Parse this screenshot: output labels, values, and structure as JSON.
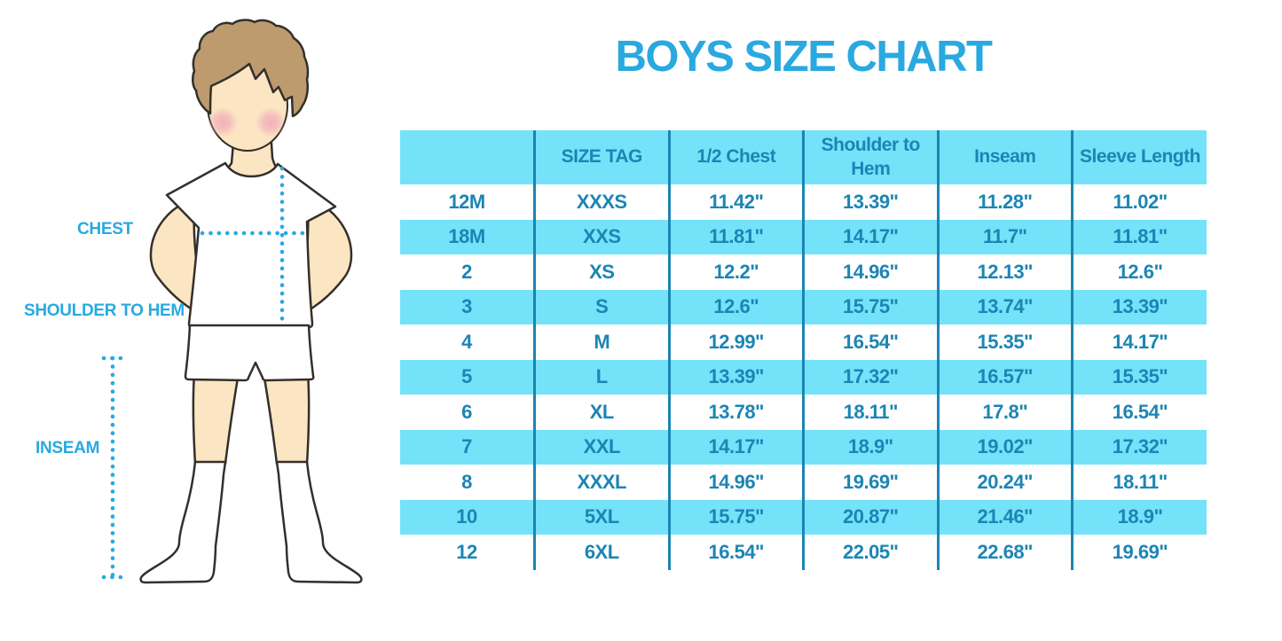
{
  "title": "BOYS SIZE CHART",
  "colors": {
    "accent_blue": "#29a9e0",
    "table_text_blue": "#1c85b4",
    "stripe_cyan": "#74e2f9",
    "divider_blue": "#1b85b2",
    "hair_brown": "#bd9b6e",
    "skin": "#fce5c2",
    "cheek_pink": "#f0a9b9",
    "outline_dark": "#33302b"
  },
  "figure": {
    "description": "outline illustration of a boy in white t-shirt, shorts and socks with dotted measurement lines",
    "labels": [
      {
        "id": "chest",
        "text": "CHEST"
      },
      {
        "id": "shoulder_to_hem",
        "text": "SHOULDER TO HEM"
      },
      {
        "id": "inseam",
        "text": "INSEAM"
      }
    ]
  },
  "chart_data": {
    "type": "table",
    "title": "BOYS SIZE CHART",
    "columns": [
      "",
      "SIZE TAG",
      "1/2 Chest",
      "Shoulder to Hem",
      "Inseam",
      "Sleeve Length"
    ],
    "rows": [
      [
        "12M",
        "XXXS",
        "11.42\"",
        "13.39\"",
        "11.28\"",
        "11.02\""
      ],
      [
        "18M",
        "XXS",
        "11.81\"",
        "14.17\"",
        "11.7\"",
        "11.81\""
      ],
      [
        "2",
        "XS",
        "12.2\"",
        "14.96\"",
        "12.13\"",
        "12.6\""
      ],
      [
        "3",
        "S",
        "12.6\"",
        "15.75\"",
        "13.74\"",
        "13.39\""
      ],
      [
        "4",
        "M",
        "12.99\"",
        "16.54\"",
        "15.35\"",
        "14.17\""
      ],
      [
        "5",
        "L",
        "13.39\"",
        "17.32\"",
        "16.57\"",
        "15.35\""
      ],
      [
        "6",
        "XL",
        "13.78\"",
        "18.11\"",
        "17.8\"",
        "16.54\""
      ],
      [
        "7",
        "XXL",
        "14.17\"",
        "18.9\"",
        "19.02\"",
        "17.32\""
      ],
      [
        "8",
        "XXXL",
        "14.96\"",
        "19.69\"",
        "20.24\"",
        "18.11\""
      ],
      [
        "10",
        "5XL",
        "15.75\"",
        "20.87\"",
        "21.46\"",
        "18.9\""
      ],
      [
        "12",
        "6XL",
        "16.54\"",
        "22.05\"",
        "22.68\"",
        "19.69\""
      ]
    ]
  }
}
